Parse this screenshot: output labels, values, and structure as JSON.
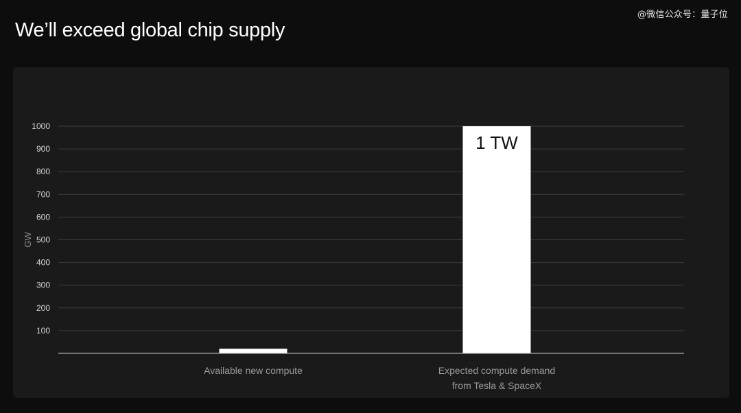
{
  "watermark": "@微信公众号：量子位",
  "title": "We’ll exceed global chip supply",
  "chart_data": {
    "type": "bar",
    "title": "",
    "xlabel": "",
    "ylabel": "GW",
    "ylim": [
      0,
      1000
    ],
    "yticks": [
      100,
      200,
      300,
      400,
      500,
      600,
      700,
      800,
      900,
      1000
    ],
    "grid": true,
    "legend": "none",
    "bar_color": "#ffffff",
    "categories": [
      [
        "Available new compute"
      ],
      [
        "Expected compute demand",
        "from Tesla & SpaceX"
      ]
    ],
    "values": [
      20,
      1000
    ],
    "data_labels": [
      "",
      "1 TW"
    ]
  }
}
